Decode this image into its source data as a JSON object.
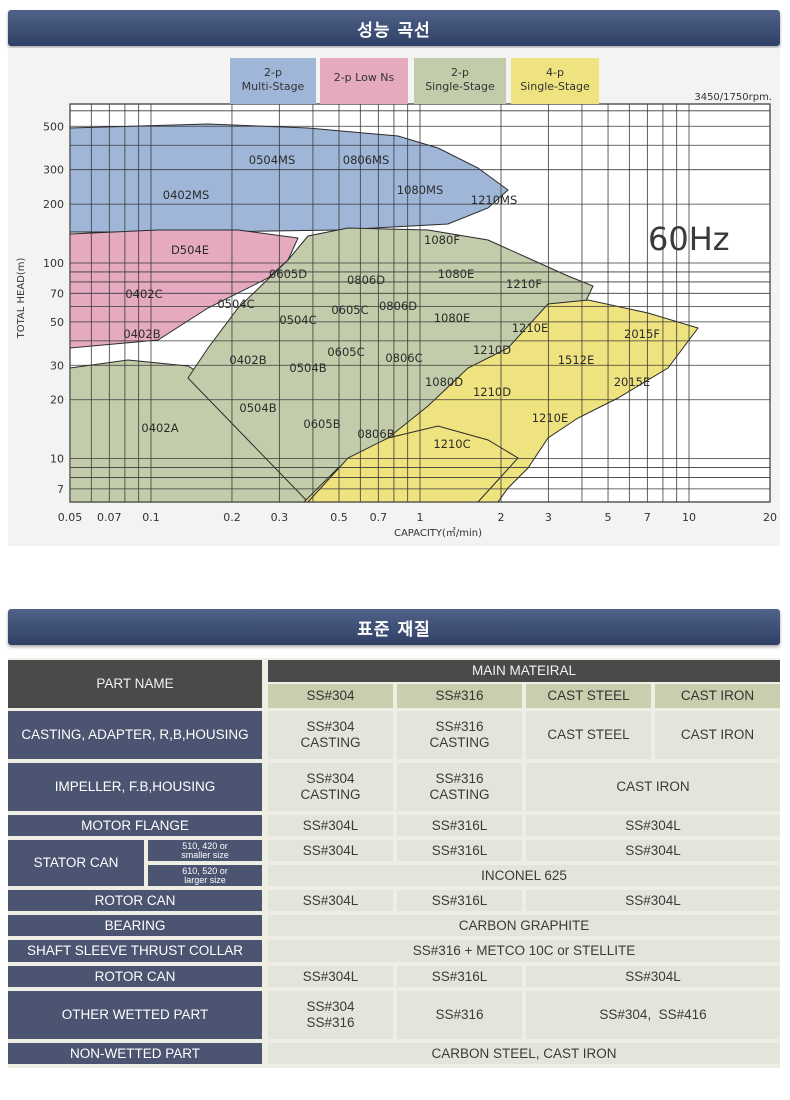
{
  "banner_top": "성능 곡선",
  "banner_bottom": "표준 재질",
  "chart": {
    "legend": [
      {
        "label": "2-p Multi-Stage",
        "color": "#9fb6d8"
      },
      {
        "label": "2-p Low Ns",
        "color": "#e5a9c0"
      },
      {
        "label": "2-p Single-Stage",
        "color": "#c3ccaa"
      },
      {
        "label": "4-p Single-Stage",
        "color": "#eee37e"
      }
    ],
    "rpm": "3450/1750rpm.",
    "hz": "60Hz",
    "xlabel": "CAPACITY(㎥/min)",
    "ylabel": "TOTAL HEAD(m)",
    "xticks": [
      "0.05",
      "0.07",
      "0.1",
      "0.2",
      "0.3",
      "0.5",
      "0.7",
      "1",
      "2",
      "3",
      "5",
      "7",
      "10",
      "20"
    ],
    "yticks": [
      "500",
      "300",
      "200",
      "100",
      "70",
      "50",
      "30",
      "20",
      "10",
      "7"
    ],
    "models": [
      "0504MS",
      "0806MS",
      "0402MS",
      "1080MS",
      "1210MS",
      "1080F",
      "D504E",
      "0605D",
      "0806D",
      "1080E",
      "1210F",
      "0402C",
      "0504C",
      "0605C",
      "0806D",
      "0504C",
      "1080E",
      "1210E",
      "2015F",
      "0402B",
      "1210D",
      "0605C",
      "0806C",
      "1512E",
      "0402B",
      "0504B",
      "1080D",
      "2015E",
      "1210D",
      "0504B",
      "1210E",
      "0605B",
      "0402A",
      "0806B",
      "1210C"
    ]
  },
  "chart_data": {
    "type": "area",
    "title": "",
    "xlabel": "CAPACITY(㎥/min)",
    "ylabel": "TOTAL HEAD(m)",
    "xscale": "log",
    "yscale": "log",
    "xlim": [
      0.05,
      20
    ],
    "ylim": [
      6,
      650
    ],
    "grid": true,
    "legend": "top-center",
    "series": [
      {
        "name": "2-p Multi-Stage",
        "models": [
          "0402MS",
          "0504MS",
          "0806MS",
          "1080MS",
          "1210MS"
        ]
      },
      {
        "name": "2-p Low Ns",
        "models": [
          "D504E",
          "0402C",
          "0402B"
        ]
      },
      {
        "name": "2-p Single-Stage",
        "models": [
          "0402A",
          "0504B",
          "0504C",
          "0605B",
          "0605C",
          "0605D",
          "0806B",
          "0806C",
          "0806D",
          "1080D",
          "1080E",
          "1080F",
          "1210E",
          "1210F"
        ]
      },
      {
        "name": "4-p Single-Stage",
        "models": [
          "1210C",
          "1210D",
          "1512E",
          "2015E",
          "2015F"
        ]
      }
    ]
  },
  "table": {
    "part_name_header": "PART NAME",
    "main_material_header": "MAIN MATEIRAL",
    "material_cols": [
      "SS#304",
      "SS#316",
      "CAST STEEL",
      "CAST IRON"
    ],
    "rows": {
      "casting": {
        "name": "CASTING, ADAPTER, R,B,HOUSING",
        "c1": "SS#304\nCASTING",
        "c2": "SS#316\nCASTING",
        "c3": "CAST STEEL",
        "c4": "CAST IRON"
      },
      "impeller": {
        "name": "IMPELLER, F.B,HOUSING",
        "c1": "SS#304\nCASTING",
        "c2": "SS#316\nCASTING",
        "c34": "CAST IRON"
      },
      "motor_flange": {
        "name": "MOTOR FLANGE",
        "c1": "SS#304L",
        "c2": "SS#316L",
        "c34": "SS#304L"
      },
      "stator_can": {
        "name": "STATOR CAN",
        "sub1": "510, 420 or\nsmaller size",
        "sub2": "610, 520 or\nlarger size",
        "r1c1": "SS#304L",
        "r1c2": "SS#316L",
        "r1c34": "SS#304L",
        "r2all": "INCONEL 625"
      },
      "rotor_can1": {
        "name": "ROTOR CAN",
        "c1": "SS#304L",
        "c2": "SS#316L",
        "c34": "SS#304L"
      },
      "bearing": {
        "name": "BEARING",
        "all": "CARBON GRAPHITE"
      },
      "shaft": {
        "name": "SHAFT SLEEVE THRUST COLLAR",
        "all": "SS#316 + METCO 10C or STELLITE"
      },
      "rotor_can2": {
        "name": "ROTOR CAN",
        "c1": "SS#304L",
        "c2": "SS#316L",
        "c34": "SS#304L"
      },
      "other_wetted": {
        "name": "OTHER WETTED PART",
        "c1": "SS#304\nSS#316",
        "c2": "SS#316",
        "c34": "SS#304,  SS#416"
      },
      "non_wetted": {
        "name": "NON-WETTED PART",
        "all": "CARBON STEEL, CAST IRON"
      }
    }
  }
}
